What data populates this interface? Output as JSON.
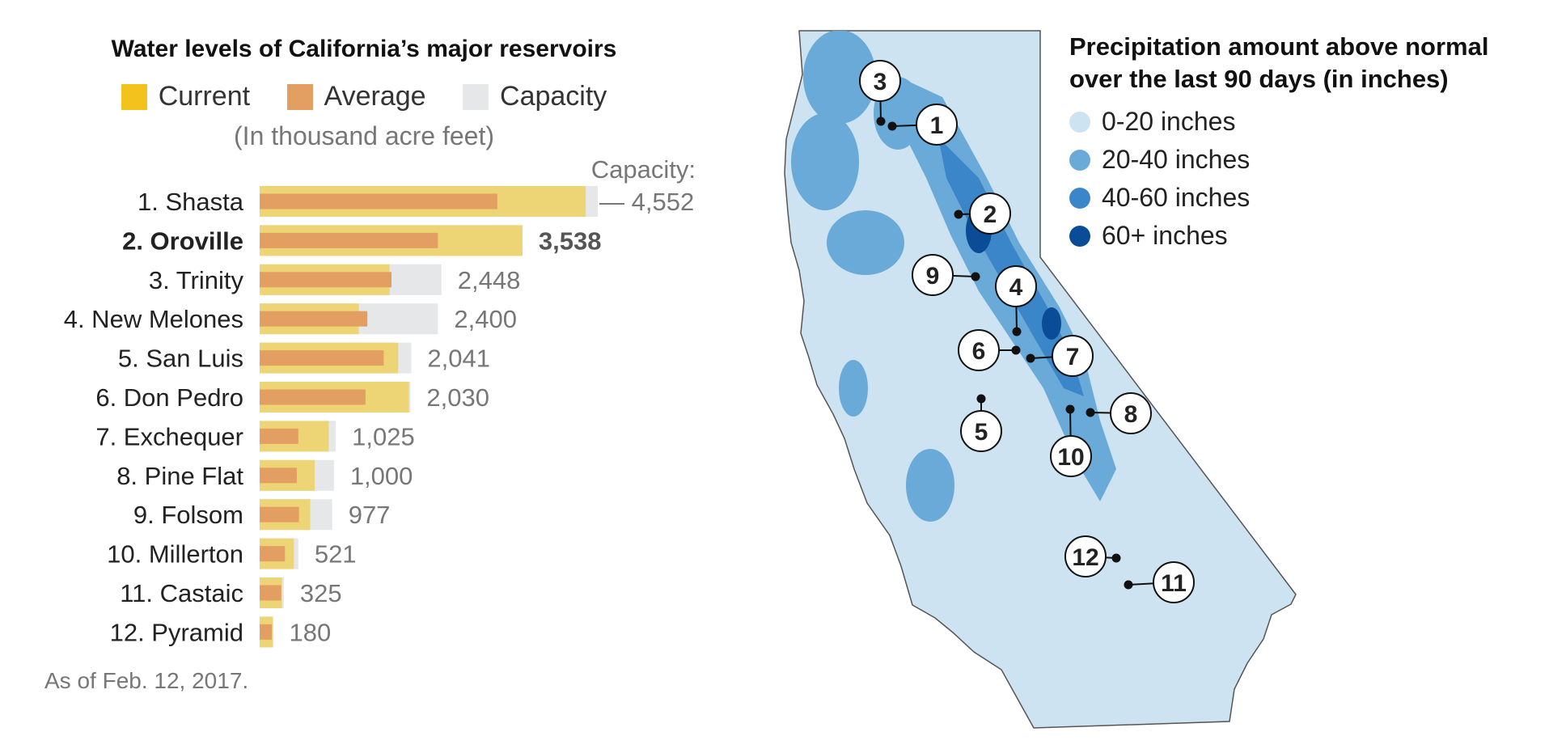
{
  "chart_data": {
    "type": "bar",
    "title": "Water levels of California’s major reservoirs",
    "legend": [
      {
        "label": "Current",
        "color": "#f2c31c"
      },
      {
        "label": "Average",
        "color": "#e39e62"
      },
      {
        "label": "Capacity",
        "color": "#e6e7e8"
      }
    ],
    "units": "(In thousand acre feet)",
    "capacity_label": "Capacity:",
    "categories": [
      "1. Shasta",
      "2. Oroville",
      "3. Trinity",
      "4. New Melones",
      "5. San Luis",
      "6. Don Pedro",
      "7. Exchequer",
      "8. Pine Flat",
      "9. Folsom",
      "10. Millerton",
      "11. Castaic",
      "12. Pyramid"
    ],
    "capacity_labels": [
      "— 4,552",
      "3,538",
      "2,448",
      "2,400",
      "2,041",
      "2,030",
      "1,025",
      "1,000",
      "977",
      "521",
      "325",
      "180"
    ],
    "highlight_index": 1,
    "series": [
      {
        "name": "Capacity",
        "values": [
          4552,
          3538,
          2448,
          2400,
          2041,
          2030,
          1025,
          1000,
          977,
          521,
          325,
          180
        ]
      },
      {
        "name": "Current",
        "values": [
          4390,
          3538,
          1750,
          1335,
          1865,
          2010,
          930,
          740,
          680,
          460,
          300,
          180
        ]
      },
      {
        "name": "Average",
        "values": [
          3200,
          2400,
          1775,
          1450,
          1670,
          1425,
          520,
          500,
          530,
          340,
          290,
          165
        ]
      }
    ],
    "xlim": [
      0,
      4552
    ],
    "grid": false,
    "footnote": "As of  Feb. 12, 2017."
  },
  "map": {
    "title_line1": "Precipitation amount above normal",
    "title_line2": "over the last 90 days (in inches)",
    "legend": [
      {
        "label": "0-20 inches",
        "color": "#cde3f1"
      },
      {
        "label": "20-40 inches",
        "color": "#6aaad9"
      },
      {
        "label": "40-60 inches",
        "color": "#3a86c8"
      },
      {
        "label": "60+ inches",
        "color": "#0a4c95"
      }
    ],
    "markers": [
      "1",
      "2",
      "3",
      "4",
      "5",
      "6",
      "7",
      "8",
      "9",
      "10",
      "11",
      "12"
    ]
  }
}
